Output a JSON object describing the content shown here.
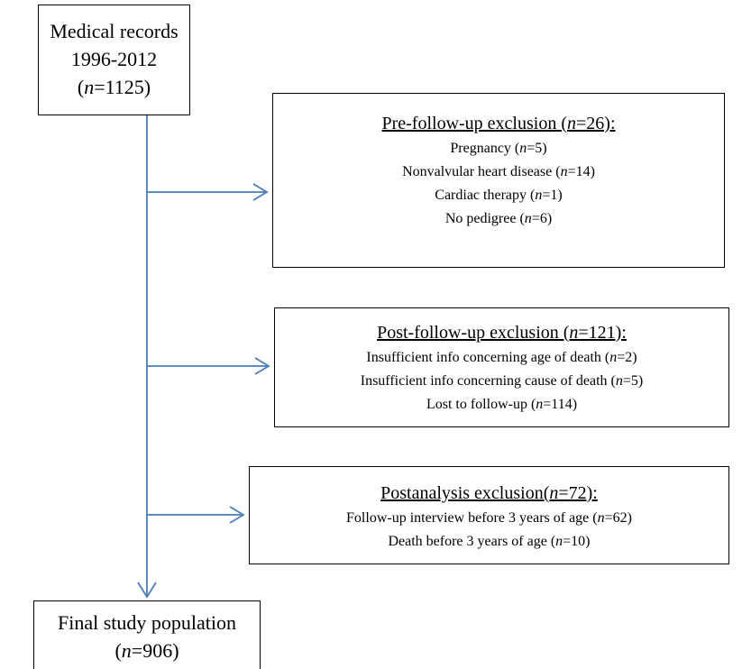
{
  "nodes": [
    {
      "lines": [
        "Medical records",
        "1996-2012",
        "(n=1125)"
      ]
    },
    {
      "title": "Pre-follow-up exclusion (n=26):",
      "items": [
        "Pregnancy (n=5)",
        "Nonvalvular heart disease (n=14)",
        "Cardiac therapy (n=1)",
        "No pedigree (n=6)"
      ]
    },
    {
      "title": "Post-follow-up exclusion (n=121):",
      "items": [
        "Insufficient info concerning age of death (n=2)",
        "Insufficient info concerning cause of death (n=5)",
        "Lost to follow-up (n=114)"
      ]
    },
    {
      "title": "Postanalysis exclusion(n=72):",
      "items": [
        "Follow-up interview before 3 years of age (n=62)",
        "Death before 3 years of age (n=10)"
      ]
    },
    {
      "lines": [
        "Final study population",
        "(n=906)"
      ]
    }
  ]
}
